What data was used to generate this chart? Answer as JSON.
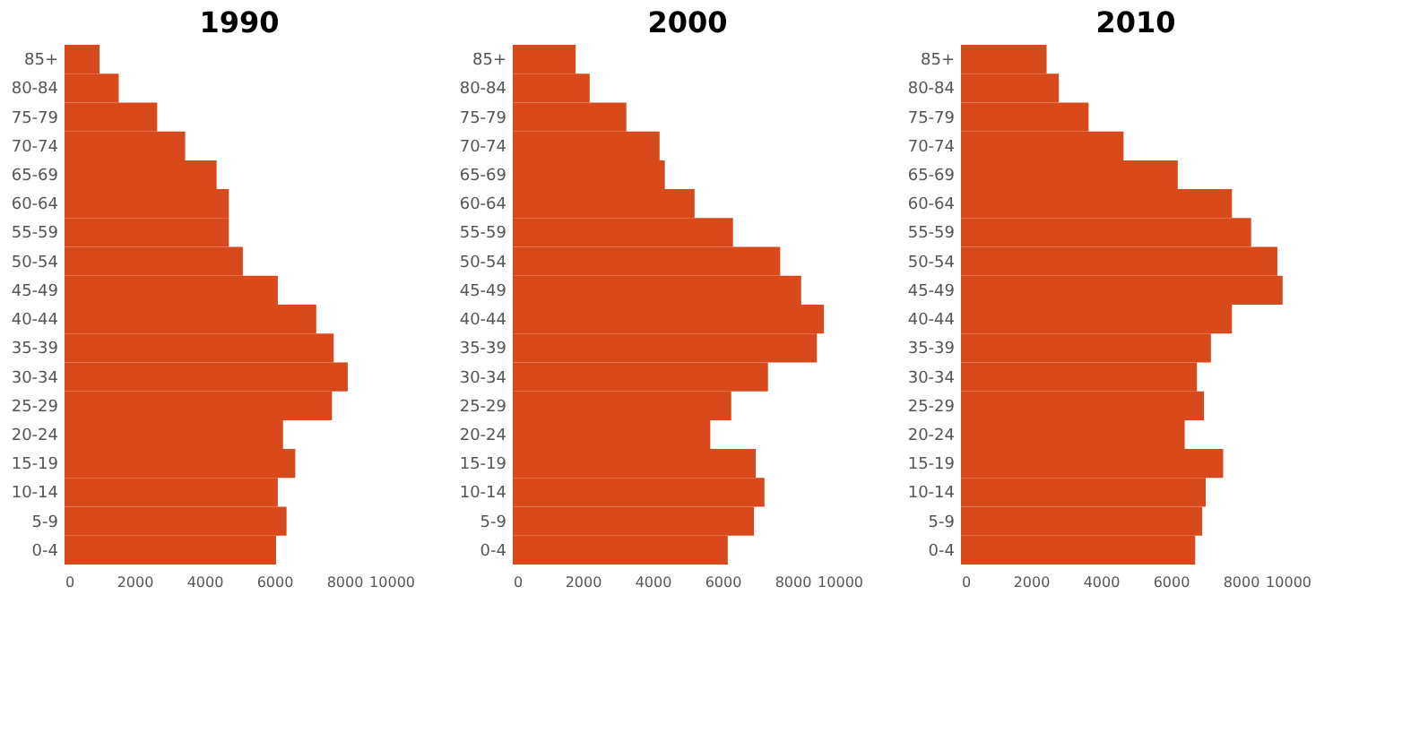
{
  "chart_data": [
    {
      "type": "bar",
      "orientation": "horizontal",
      "title": "1990",
      "categories": [
        "85+",
        "80-84",
        "75-79",
        "70-74",
        "65-69",
        "60-64",
        "55-59",
        "50-54",
        "45-49",
        "40-44",
        "35-39",
        "30-34",
        "25-29",
        "20-24",
        "15-19",
        "10-14",
        "5-9",
        "0-4"
      ],
      "values": [
        1000,
        1550,
        2650,
        3450,
        4350,
        4700,
        4700,
        5100,
        6100,
        7200,
        7700,
        8100,
        7650,
        6250,
        6600,
        6100,
        6350,
        6050
      ],
      "color": "#d84a1b",
      "xlim": [
        0,
        10000
      ],
      "xticks": [
        0,
        2000,
        4000,
        6000,
        8000,
        10000
      ],
      "grid": false
    },
    {
      "type": "bar",
      "orientation": "horizontal",
      "title": "2000",
      "categories": [
        "85+",
        "80-84",
        "75-79",
        "70-74",
        "65-69",
        "60-64",
        "55-59",
        "50-54",
        "45-49",
        "40-44",
        "35-39",
        "30-34",
        "25-29",
        "20-24",
        "15-19",
        "10-14",
        "5-9",
        "0-4"
      ],
      "values": [
        1800,
        2200,
        3250,
        4200,
        4350,
        5200,
        6300,
        7650,
        8250,
        8900,
        8700,
        7300,
        6250,
        5650,
        6950,
        7200,
        6900,
        6150
      ],
      "color": "#d84a1b",
      "xlim": [
        0,
        10000
      ],
      "xticks": [
        0,
        2000,
        4000,
        6000,
        8000,
        10000
      ],
      "grid": false
    },
    {
      "type": "bar",
      "orientation": "horizontal",
      "title": "2010",
      "categories": [
        "85+",
        "80-84",
        "75-79",
        "70-74",
        "65-69",
        "60-64",
        "55-59",
        "50-54",
        "45-49",
        "40-44",
        "35-39",
        "30-34",
        "25-29",
        "20-24",
        "15-19",
        "10-14",
        "5-9",
        "0-4"
      ],
      "values": [
        2450,
        2800,
        3650,
        4650,
        6200,
        7750,
        8300,
        9050,
        9200,
        7750,
        7150,
        6750,
        6950,
        6400,
        7500,
        7000,
        6900,
        6700
      ],
      "color": "#d84a1b",
      "xlim": [
        0,
        10000
      ],
      "xticks": [
        0,
        2000,
        4000,
        6000,
        8000,
        10000
      ],
      "grid": false
    }
  ]
}
